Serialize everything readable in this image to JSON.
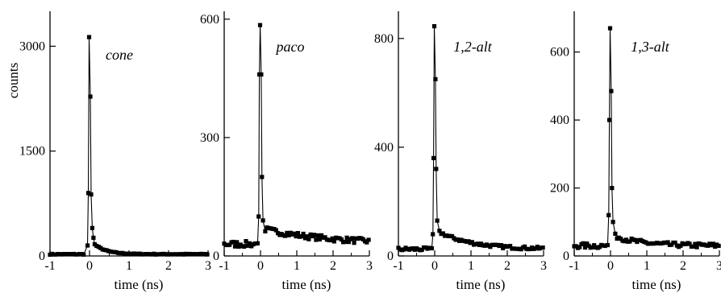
{
  "figure": {
    "ylabel": "counts"
  },
  "chart_data": [
    {
      "type": "scatter",
      "title": "cone",
      "xlabel": "time (ns)",
      "ylabel": "counts",
      "xlim": [
        -1,
        3
      ],
      "ylim": [
        0,
        3500
      ],
      "xticks": [
        "-1",
        "0",
        "1",
        "2",
        "3"
      ],
      "yticks": [
        {
          "v": 0,
          "label": "0"
        },
        {
          "v": 1500,
          "label": "1500"
        },
        {
          "v": 3000,
          "label": "3000"
        }
      ],
      "baseline": 25,
      "peak": [
        {
          "x": -0.05,
          "y": 150
        },
        {
          "x": -0.03,
          "y": 900
        },
        {
          "x": -0.01,
          "y": 3130
        },
        {
          "x": 0.02,
          "y": 2280
        },
        {
          "x": 0.04,
          "y": 880
        },
        {
          "x": 0.07,
          "y": 400
        },
        {
          "x": 0.1,
          "y": 260
        }
      ],
      "tail_start": 180,
      "tail_tau": 0.3
    },
    {
      "type": "scatter",
      "title": "paco",
      "xlabel": "time (ns)",
      "ylabel": "",
      "xlim": [
        -1,
        3
      ],
      "ylim": [
        0,
        620
      ],
      "xticks": [
        "-1",
        "0",
        "1",
        "2",
        "3"
      ],
      "yticks": [
        {
          "v": 0,
          "label": "0"
        },
        {
          "v": 300,
          "label": "300"
        },
        {
          "v": 600,
          "label": "600"
        }
      ],
      "baseline": 30,
      "peak": [
        {
          "x": -0.08,
          "y": 32
        },
        {
          "x": -0.05,
          "y": 100
        },
        {
          "x": -0.03,
          "y": 460
        },
        {
          "x": -0.01,
          "y": 585
        },
        {
          "x": 0.02,
          "y": 460
        },
        {
          "x": 0.04,
          "y": 200
        },
        {
          "x": 0.07,
          "y": 90
        }
      ],
      "tail_start": 68,
      "tail_tau": 1.8
    },
    {
      "type": "scatter",
      "title": "1,2-alt",
      "xlabel": "time (ns)",
      "ylabel": "",
      "xlim": [
        -1,
        3
      ],
      "ylim": [
        0,
        900
      ],
      "xticks": [
        "-1",
        "0",
        "1",
        "2",
        "3"
      ],
      "yticks": [
        {
          "v": 0,
          "label": "0"
        },
        {
          "v": 400,
          "label": "400"
        },
        {
          "v": 800,
          "label": "800"
        }
      ],
      "baseline": 25,
      "peak": [
        {
          "x": -0.08,
          "y": 28
        },
        {
          "x": -0.05,
          "y": 80
        },
        {
          "x": -0.03,
          "y": 360
        },
        {
          "x": -0.01,
          "y": 845
        },
        {
          "x": 0.02,
          "y": 650
        },
        {
          "x": 0.04,
          "y": 320
        },
        {
          "x": 0.07,
          "y": 130
        }
      ],
      "tail_start": 90,
      "tail_tau": 0.9
    },
    {
      "type": "scatter",
      "title": "1,3-alt",
      "xlabel": "time (ns)",
      "ylabel": "",
      "xlim": [
        -1,
        3
      ],
      "ylim": [
        0,
        720
      ],
      "xticks": [
        "-1",
        "0",
        "1",
        "2",
        "3"
      ],
      "yticks": [
        {
          "v": 0,
          "label": "0"
        },
        {
          "v": 200,
          "label": "200"
        },
        {
          "v": 400,
          "label": "400"
        },
        {
          "v": 600,
          "label": "600"
        }
      ],
      "baseline": 30,
      "peak": [
        {
          "x": -0.08,
          "y": 32
        },
        {
          "x": -0.05,
          "y": 120
        },
        {
          "x": -0.03,
          "y": 400
        },
        {
          "x": -0.01,
          "y": 670
        },
        {
          "x": 0.02,
          "y": 485
        },
        {
          "x": 0.04,
          "y": 200
        },
        {
          "x": 0.07,
          "y": 100
        }
      ],
      "tail_start": 60,
      "tail_tau": 0.7
    }
  ]
}
